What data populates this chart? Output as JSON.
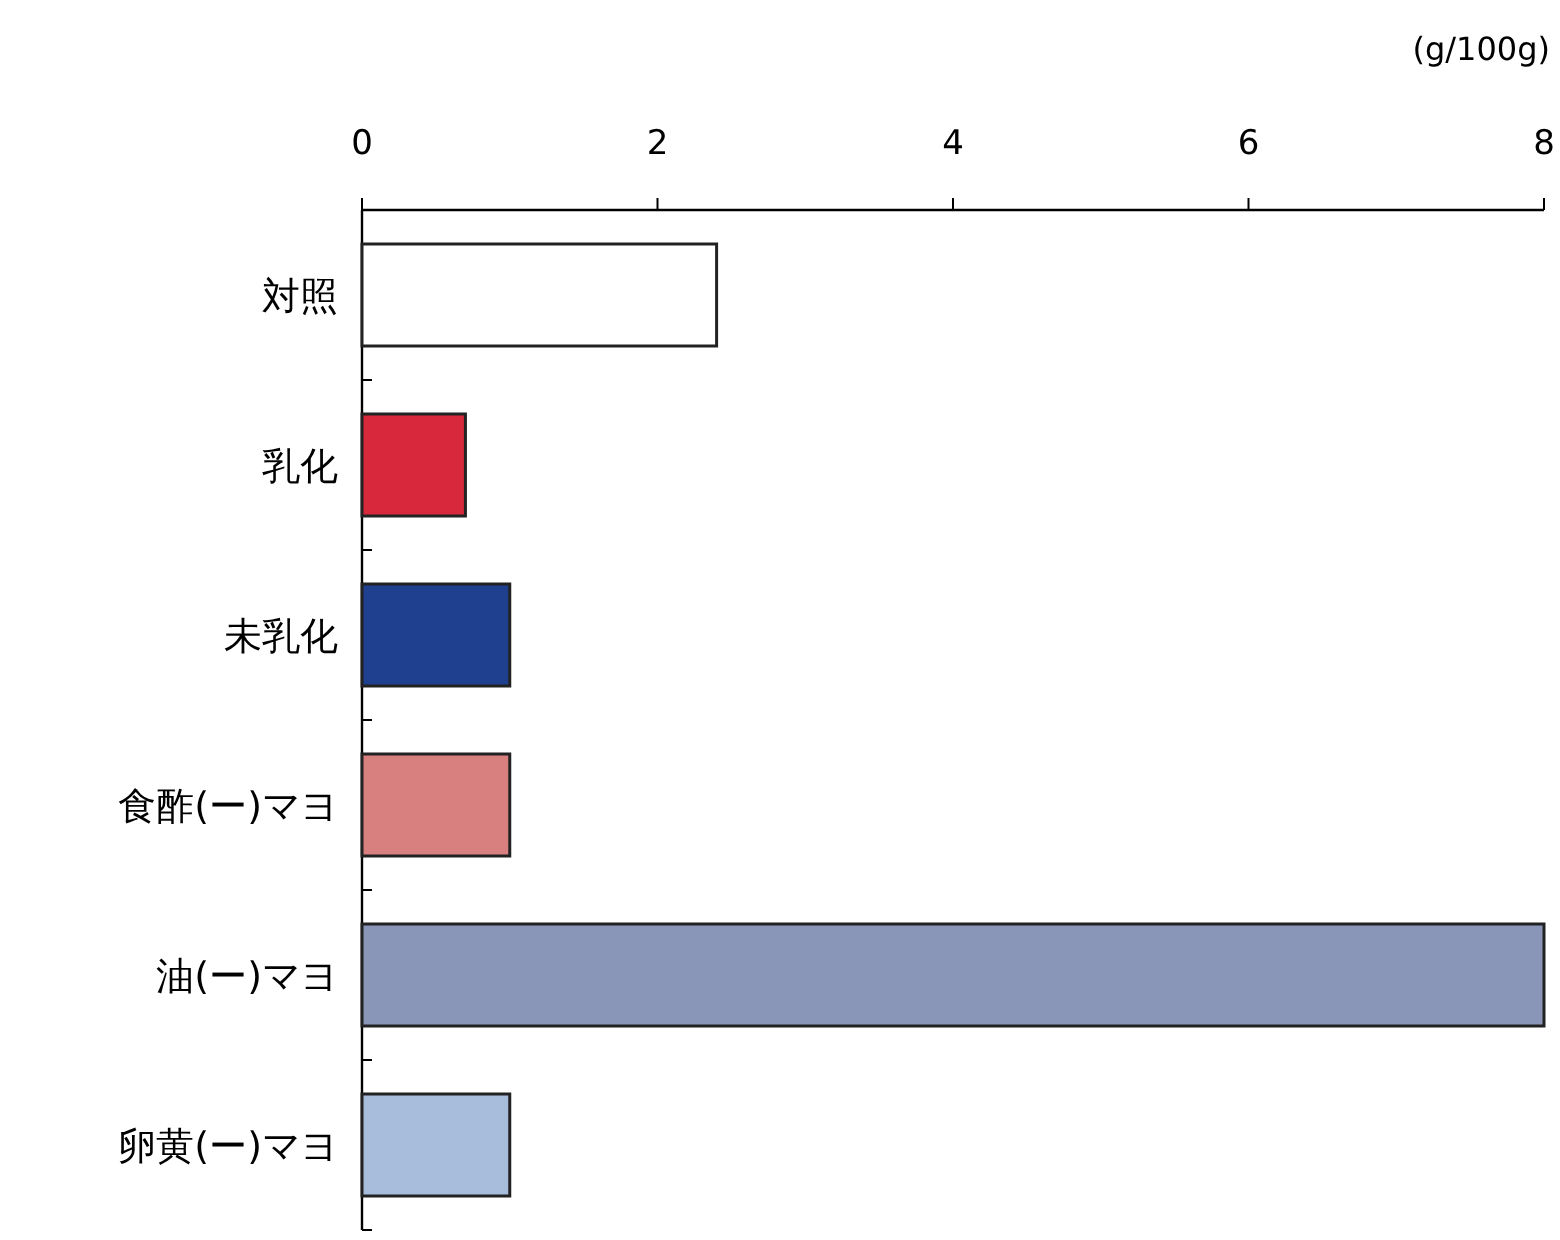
{
  "chart_data": {
    "type": "bar",
    "orientation": "horizontal",
    "xlabel": "(g/100g)",
    "categories": [
      "対照",
      "乳化",
      "未乳化",
      "食酢(ー)マヨ",
      "油(ー)マヨ",
      "卵黄(ー)マヨ"
    ],
    "values": [
      2.4,
      0.7,
      1.0,
      1.0,
      8.0,
      1.0
    ],
    "colors": [
      "#ffffff",
      "#d8283c",
      "#1f3f8f",
      "#d88080",
      "#8a96b8",
      "#a8bcdc"
    ],
    "xlim": [
      0,
      8
    ],
    "xticks": [
      0,
      2,
      4,
      6,
      8
    ],
    "grid": false
  }
}
